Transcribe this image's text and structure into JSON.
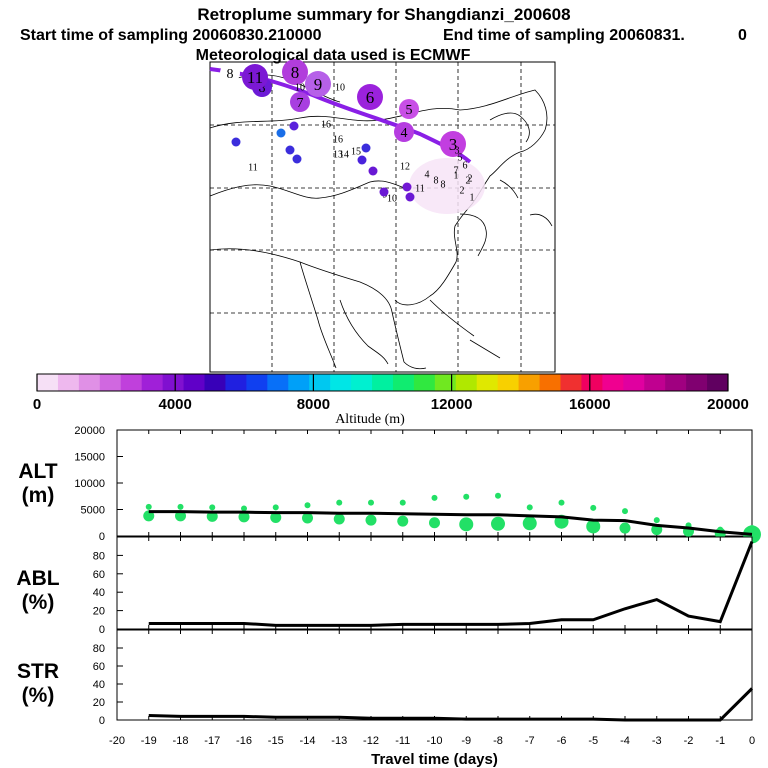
{
  "header": {
    "title": "Retroplume summary for Shangdianzi_200608",
    "start_label": "Start time of sampling 20060830.210000",
    "end_label": "End time of sampling 20060831.",
    "end_value": "0",
    "met_label": "Meteorological data used is ECMWF"
  },
  "colorbar": {
    "ticks": [
      "0",
      "4000",
      "8000",
      "12000",
      "16000",
      "20000"
    ],
    "label": "Altitude (m)",
    "colors": [
      "#f6e0f6",
      "#eeb8ee",
      "#e090e6",
      "#d068e0",
      "#c040dc",
      "#a020d8",
      "#8010d0",
      "#6000c8",
      "#3800b8",
      "#2020e0",
      "#1040f0",
      "#0870f8",
      "#00a0f8",
      "#00c8f0",
      "#00e6e6",
      "#00f0d0",
      "#00f0a0",
      "#10ec70",
      "#30e840",
      "#70e820",
      "#b0e800",
      "#e0e800",
      "#f8d000",
      "#f8a000",
      "#f87000",
      "#f03030",
      "#f00060",
      "#f00090",
      "#e000a0",
      "#c00090",
      "#a00080",
      "#800070",
      "#600060"
    ]
  },
  "map": {
    "trajectory_labels": [
      {
        "t": "1",
        "s": "small"
      },
      {
        "t": "2",
        "s": "small"
      },
      {
        "t": "3",
        "s": "big"
      },
      {
        "t": "4",
        "s": "med"
      },
      {
        "t": "5",
        "s": "med"
      },
      {
        "t": "6",
        "s": "big"
      },
      {
        "t": "7",
        "s": "med"
      },
      {
        "t": "8",
        "s": "big"
      },
      {
        "t": "8",
        "s": "med"
      },
      {
        "t": "9",
        "s": "big"
      },
      {
        "t": "10",
        "s": "small"
      },
      {
        "t": "11",
        "s": "big"
      },
      {
        "t": "8",
        "s": "med"
      },
      {
        "t": "10",
        "s": "small"
      },
      {
        "t": "16",
        "s": "small"
      },
      {
        "t": "16",
        "s": "small"
      },
      {
        "t": "13",
        "s": "small"
      },
      {
        "t": "15",
        "s": "small"
      },
      {
        "t": "14",
        "s": "small"
      },
      {
        "t": "11",
        "s": "small"
      },
      {
        "t": "12",
        "s": "small"
      },
      {
        "t": "4",
        "s": "small"
      },
      {
        "t": "11",
        "s": "small"
      },
      {
        "t": "10",
        "s": "small"
      },
      {
        "t": "9",
        "s": "small"
      },
      {
        "t": "8",
        "s": "small"
      },
      {
        "t": "3",
        "s": "small"
      },
      {
        "t": "5",
        "s": "small"
      },
      {
        "t": "6",
        "s": "small"
      },
      {
        "t": "7",
        "s": "small"
      },
      {
        "t": "8",
        "s": "small"
      },
      {
        "t": "2",
        "s": "small"
      },
      {
        "t": "2",
        "s": "small"
      },
      {
        "t": "1",
        "s": "small"
      }
    ]
  },
  "chart_data": [
    {
      "type": "line",
      "panel": "ALT",
      "ylabel_top": "ALT",
      "ylabel_bottom": "(m)",
      "ylim": [
        0,
        20000
      ],
      "yticks": [
        "0",
        "5000",
        "10000",
        "15000",
        "20000"
      ],
      "x": [
        -19,
        -18,
        -17,
        -16,
        -15,
        -14,
        -13,
        -12,
        -11,
        -10,
        -9,
        -8,
        -7,
        -6,
        -5,
        -4,
        -3,
        -2,
        -1,
        0
      ],
      "series": [
        {
          "name": "mean altitude",
          "values": [
            4600,
            4600,
            4500,
            4500,
            4400,
            4400,
            4300,
            4300,
            4200,
            4100,
            4000,
            4000,
            3800,
            3600,
            3000,
            2900,
            2000,
            1500,
            800,
            300
          ]
        }
      ],
      "scatter_clusters": [
        {
          "x": -19,
          "y": [
            5500,
            3800
          ]
        },
        {
          "x": -18,
          "y": [
            5500,
            3800
          ]
        },
        {
          "x": -17,
          "y": [
            5400,
            3700
          ]
        },
        {
          "x": -16,
          "y": [
            5200,
            3600
          ]
        },
        {
          "x": -15,
          "y": [
            5400,
            3500
          ]
        },
        {
          "x": -14,
          "y": [
            5800,
            3400
          ]
        },
        {
          "x": -13,
          "y": [
            6300,
            3200
          ]
        },
        {
          "x": -12,
          "y": [
            6300,
            3000
          ]
        },
        {
          "x": -11,
          "y": [
            6300,
            2800
          ]
        },
        {
          "x": -10,
          "y": [
            7200,
            2500
          ]
        },
        {
          "x": -9,
          "y": [
            7400,
            2200
          ]
        },
        {
          "x": -8,
          "y": [
            7600,
            2300
          ]
        },
        {
          "x": -7,
          "y": [
            5400,
            2400
          ]
        },
        {
          "x": -6,
          "y": [
            6300,
            2700
          ]
        },
        {
          "x": -5,
          "y": [
            5300,
            1800
          ]
        },
        {
          "x": -4,
          "y": [
            4700,
            1500
          ]
        },
        {
          "x": -3,
          "y": [
            3000,
            1200
          ]
        },
        {
          "x": -2,
          "y": [
            2000,
            900
          ]
        },
        {
          "x": -1,
          "y": [
            1200,
            500
          ]
        },
        {
          "x": 0,
          "y": [
            1500,
            300
          ]
        }
      ]
    },
    {
      "type": "line",
      "panel": "ABL",
      "ylabel_top": "ABL",
      "ylabel_bottom": "(%)",
      "ylim": [
        0,
        100
      ],
      "yticks": [
        "0",
        "20",
        "40",
        "60",
        "80"
      ],
      "x": [
        -19,
        -18,
        -17,
        -16,
        -15,
        -14,
        -13,
        -12,
        -11,
        -10,
        -9,
        -8,
        -7,
        -6,
        -5,
        -4,
        -3,
        -2,
        -1,
        0
      ],
      "series": [
        {
          "name": "ABL fraction",
          "values": [
            6,
            6,
            6,
            6,
            4,
            4,
            4,
            4,
            5,
            5,
            5,
            5,
            6,
            10,
            10,
            22,
            32,
            14,
            8,
            95
          ]
        }
      ]
    },
    {
      "type": "line",
      "panel": "STR",
      "ylabel_top": "STR",
      "ylabel_bottom": "(%)",
      "ylim": [
        0,
        100
      ],
      "yticks": [
        "0",
        "20",
        "40",
        "60",
        "80"
      ],
      "x": [
        -19,
        -18,
        -17,
        -16,
        -15,
        -14,
        -13,
        -12,
        -11,
        -10,
        -9,
        -8,
        -7,
        -6,
        -5,
        -4,
        -3,
        -2,
        -1,
        0
      ],
      "xlabel": "Travel time (days)",
      "xticks": [
        "-20",
        "-19",
        "-18",
        "-17",
        "-16",
        "-15",
        "-14",
        "-13",
        "-12",
        "-11",
        "-10",
        "-9",
        "-8",
        "-7",
        "-6",
        "-5",
        "-4",
        "-3",
        "-2",
        "-1",
        "0"
      ],
      "series": [
        {
          "name": "STR fraction",
          "values": [
            5,
            4,
            4,
            4,
            3,
            3,
            3,
            2,
            2,
            2,
            1,
            1,
            1,
            1,
            1,
            0,
            0,
            0,
            0,
            35
          ]
        }
      ]
    }
  ]
}
